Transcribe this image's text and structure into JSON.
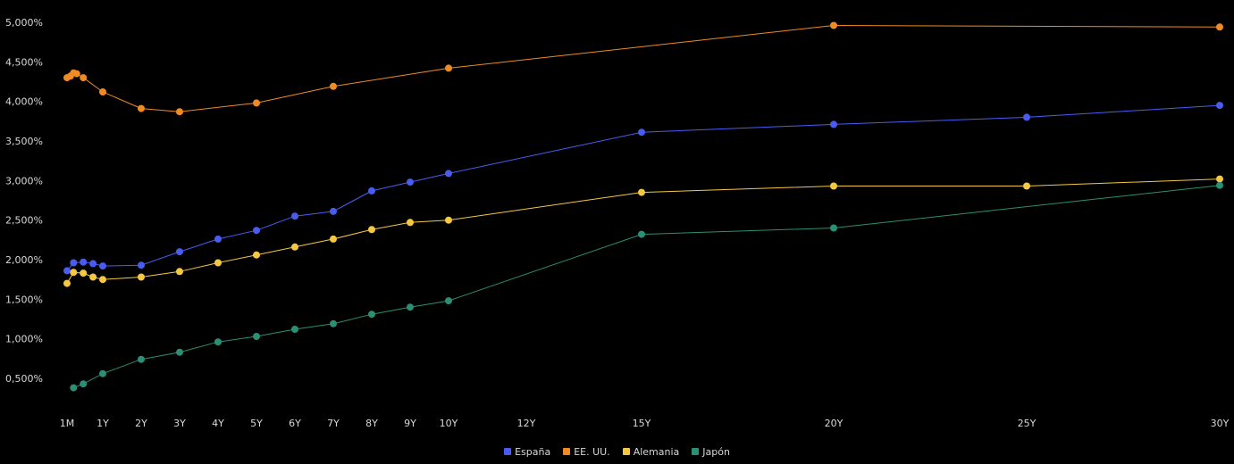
{
  "chart_data": {
    "type": "line",
    "title": "",
    "xlabel": "",
    "ylabel": "",
    "grid": false,
    "legend_position": "bottom-center",
    "y_ticks": [
      "0,500%",
      "1,000%",
      "1,500%",
      "2,000%",
      "2,500%",
      "3,000%",
      "3,500%",
      "4,000%",
      "4,500%",
      "5,000%"
    ],
    "y_tick_values": [
      0.5,
      1.0,
      1.5,
      2.0,
      2.5,
      3.0,
      3.5,
      4.0,
      4.5,
      5.0
    ],
    "ylim": [
      0,
      5.0
    ],
    "x_ticks": [
      "1M",
      "1Y",
      "2Y",
      "3Y",
      "4Y",
      "5Y",
      "6Y",
      "7Y",
      "8Y",
      "9Y",
      "10Y",
      "12Y",
      "15Y",
      "20Y",
      "25Y",
      "30Y"
    ],
    "x_tick_values": [
      0.083,
      1,
      2,
      3,
      4,
      5,
      6,
      7,
      8,
      9,
      10,
      12,
      15,
      20,
      25,
      30
    ],
    "series": [
      {
        "name": "España",
        "color": "#4a5cf0",
        "x": [
          0.083,
          0.25,
          0.5,
          0.75,
          1,
          2,
          3,
          4,
          5,
          6,
          7,
          8,
          9,
          10,
          15,
          20,
          25,
          30
        ],
        "y": [
          1.86,
          1.96,
          1.97,
          1.95,
          1.92,
          1.93,
          2.1,
          2.26,
          2.37,
          2.55,
          2.61,
          2.87,
          2.98,
          3.09,
          3.61,
          3.71,
          3.8,
          3.95
        ]
      },
      {
        "name": "EE. UU.",
        "color": "#f08a24",
        "x": [
          0.083,
          0.17,
          0.25,
          0.33,
          0.5,
          1,
          2,
          3,
          5,
          7,
          10,
          20,
          30
        ],
        "y": [
          4.3,
          4.32,
          4.36,
          4.35,
          4.3,
          4.12,
          3.91,
          3.87,
          3.98,
          4.19,
          4.42,
          4.96,
          4.94
        ]
      },
      {
        "name": "Alemania",
        "color": "#f5c842",
        "x": [
          0.083,
          0.25,
          0.5,
          0.75,
          1,
          2,
          3,
          4,
          5,
          6,
          7,
          8,
          9,
          10,
          15,
          20,
          25,
          30
        ],
        "y": [
          1.7,
          1.84,
          1.83,
          1.78,
          1.75,
          1.78,
          1.85,
          1.96,
          2.06,
          2.16,
          2.26,
          2.38,
          2.47,
          2.5,
          2.85,
          2.93,
          2.93,
          3.02
        ]
      },
      {
        "name": "Japón",
        "color": "#2b8f74",
        "x": [
          0.25,
          0.5,
          1,
          2,
          3,
          4,
          5,
          6,
          7,
          8,
          9,
          10,
          15,
          20,
          30
        ],
        "y": [
          0.38,
          0.43,
          0.56,
          0.74,
          0.83,
          0.96,
          1.03,
          1.12,
          1.19,
          1.31,
          1.4,
          1.48,
          2.32,
          2.4,
          2.94
        ]
      }
    ]
  }
}
